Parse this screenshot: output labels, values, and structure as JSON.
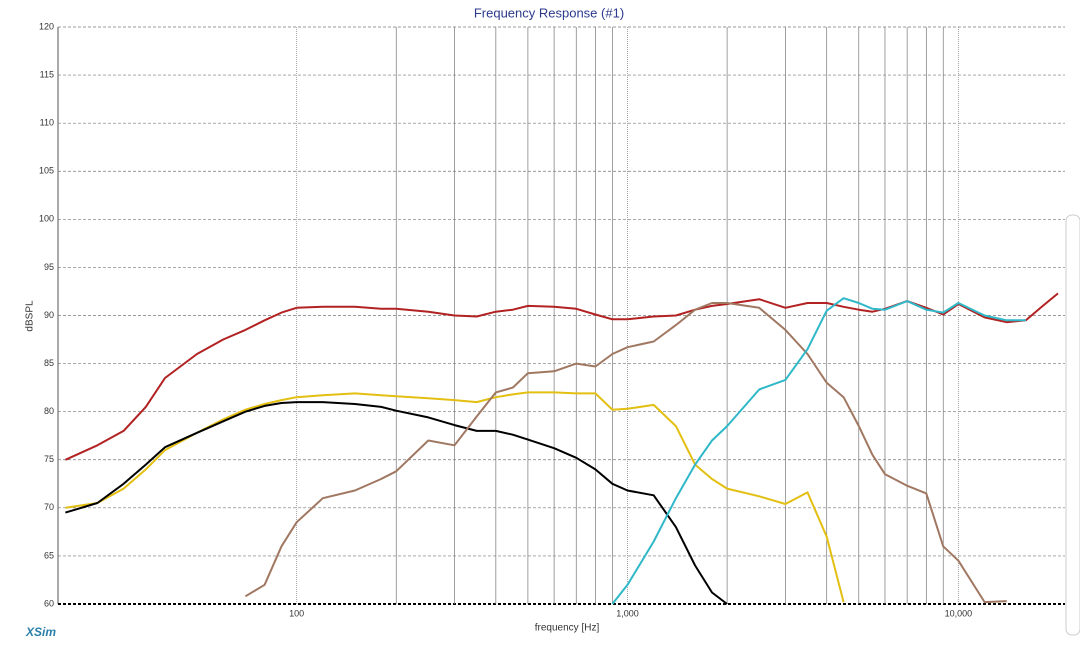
{
  "chart_data": {
    "type": "line",
    "title": "Frequency Response (#1)",
    "xlabel": "frequency [Hz]",
    "ylabel": "dBSPL",
    "brand": "XSim",
    "xscale": "log",
    "xlim": [
      19,
      21000
    ],
    "ylim": [
      60,
      120
    ],
    "xticks": [
      100,
      {
        "value": 1000,
        "label": "1,000"
      },
      {
        "value": 10000,
        "label": "10,000"
      }
    ],
    "xminor": [
      200,
      300,
      400,
      500,
      600,
      700,
      800,
      900,
      2000,
      3000,
      4000,
      5000,
      6000,
      7000,
      8000,
      9000
    ],
    "yticks": [
      60,
      65,
      70,
      75,
      80,
      85,
      90,
      95,
      100,
      105,
      110,
      115,
      120
    ],
    "grid": true,
    "x": [
      20,
      25,
      30,
      35,
      40,
      50,
      60,
      70,
      80,
      90,
      100,
      120,
      150,
      180,
      200,
      250,
      300,
      350,
      400,
      450,
      500,
      600,
      700,
      800,
      900,
      1000,
      1200,
      1400,
      1600,
      1800,
      2000,
      2500,
      3000,
      3500,
      4000,
      4500,
      5000,
      5500,
      6000,
      7000,
      8000,
      9000,
      10000,
      12000,
      14000,
      16000,
      18000,
      20000
    ],
    "series": [
      {
        "color": "#b22222",
        "values": [
          75,
          76.5,
          78,
          80.5,
          83.5,
          86,
          87.5,
          88.5,
          89.5,
          90.3,
          90.8,
          90.9,
          90.9,
          90.7,
          90.7,
          90.4,
          90,
          89.9,
          90.4,
          90.6,
          91,
          90.9,
          90.7,
          90.1,
          89.6,
          89.6,
          89.9,
          90,
          90.6,
          91,
          91.2,
          91.7,
          90.8,
          91.3,
          91.3,
          90.9,
          90.6,
          90.4,
          90.7,
          91.5,
          90.8,
          90.1,
          91.2,
          89.8,
          89.3,
          89.5,
          91,
          92.3
        ]
      },
      {
        "color": "#e3bf12",
        "values": [
          70,
          70.5,
          72,
          74,
          76,
          77.8,
          79.2,
          80.2,
          80.8,
          81.2,
          81.5,
          81.7,
          81.9,
          81.7,
          81.6,
          81.4,
          81.2,
          81,
          81.5,
          81.8,
          82,
          82,
          81.9,
          81.9,
          80.2,
          80.3,
          80.7,
          78.5,
          74.5,
          73,
          72,
          71.2,
          70.4,
          71.6,
          67,
          60.2,
          null,
          null,
          null,
          null,
          null,
          null,
          null,
          null,
          null,
          null,
          null,
          null
        ]
      },
      {
        "color": "#000000",
        "values": [
          69.5,
          70.5,
          72.5,
          74.5,
          76.3,
          77.8,
          79,
          80,
          80.6,
          80.9,
          81,
          81,
          80.8,
          80.5,
          80.1,
          79.4,
          78.6,
          78,
          78,
          77.6,
          77.1,
          76.2,
          75.2,
          74,
          72.5,
          71.8,
          71.3,
          68,
          64,
          61.2,
          60,
          null,
          null,
          null,
          null,
          null,
          null,
          null,
          null,
          null,
          null,
          null,
          null,
          null,
          null,
          null,
          null,
          null
        ]
      },
      {
        "color": "#a07862",
        "values": [
          null,
          null,
          null,
          null,
          null,
          null,
          null,
          60.8,
          62,
          66,
          68.5,
          71,
          71.8,
          73,
          73.8,
          77,
          76.5,
          79.5,
          82,
          82.5,
          84,
          84.2,
          85,
          84.7,
          86,
          86.7,
          87.3,
          89,
          90.6,
          91.3,
          91.3,
          90.8,
          88.5,
          86,
          83,
          81.5,
          78.5,
          75.5,
          73.5,
          72.3,
          71.5,
          66,
          64.5,
          60.2,
          60.3,
          null,
          null,
          null
        ]
      },
      {
        "color": "#2fb8c8",
        "values": [
          null,
          null,
          null,
          null,
          null,
          null,
          null,
          null,
          null,
          null,
          null,
          null,
          null,
          null,
          null,
          null,
          null,
          null,
          null,
          null,
          null,
          null,
          null,
          null,
          60,
          62,
          66.5,
          71,
          74.5,
          77,
          78.5,
          82.3,
          83.3,
          86.5,
          90.5,
          91.8,
          91.3,
          90.7,
          90.6,
          91.5,
          90.6,
          90.3,
          91.3,
          90,
          89.5,
          89.5,
          null,
          null
        ]
      }
    ]
  }
}
